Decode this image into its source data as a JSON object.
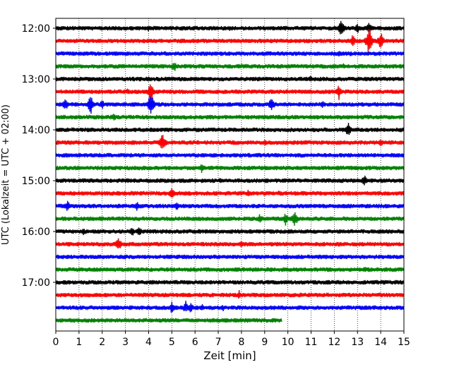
{
  "chart_data": {
    "type": "line",
    "title": "",
    "xlabel": "Zeit  [min]",
    "ylabel": "UTC (Lokalzeit = UTC + 02:00)",
    "xlim": [
      0,
      15
    ],
    "x_ticks": [
      "0",
      "1",
      "2",
      "3",
      "4",
      "5",
      "6",
      "7",
      "8",
      "9",
      "10",
      "11",
      "12",
      "13",
      "14",
      "15"
    ],
    "y_ticks": [
      "12:00",
      "13:00",
      "14:00",
      "15:00",
      "16:00",
      "17:00"
    ],
    "grid": "vertical dotted",
    "colors": [
      "#000000",
      "#ff0000",
      "#0000ff",
      "#008000"
    ],
    "series": [
      {
        "start": "12:00",
        "color": "#000000",
        "end_min": 15,
        "events": [
          [
            4.0,
            6
          ],
          [
            6.3,
            4
          ],
          [
            7.5,
            4
          ],
          [
            12.3,
            14
          ],
          [
            13.0,
            8
          ],
          [
            13.5,
            10
          ]
        ]
      },
      {
        "start": "12:15",
        "color": "#ff0000",
        "end_min": 15,
        "events": [
          [
            9.5,
            3
          ],
          [
            12.8,
            10
          ],
          [
            13.5,
            24
          ],
          [
            14.0,
            14
          ]
        ]
      },
      {
        "start": "12:30",
        "color": "#0000ff",
        "end_min": 15,
        "events": [
          [
            12.2,
            5
          ],
          [
            12.7,
            4
          ]
        ]
      },
      {
        "start": "12:45",
        "color": "#008000",
        "end_min": 15,
        "events": [
          [
            5.1,
            9
          ],
          [
            8.0,
            4
          ],
          [
            12.4,
            5
          ]
        ]
      },
      {
        "start": "13:00",
        "color": "#000000",
        "end_min": 15,
        "events": [
          [
            11.0,
            6
          ],
          [
            13.0,
            4
          ]
        ]
      },
      {
        "start": "13:15",
        "color": "#ff0000",
        "end_min": 15,
        "events": [
          [
            3.1,
            6
          ],
          [
            4.1,
            16
          ],
          [
            12.2,
            12
          ]
        ]
      },
      {
        "start": "13:30",
        "color": "#0000ff",
        "end_min": 15,
        "events": [
          [
            0.4,
            12
          ],
          [
            1.5,
            16
          ],
          [
            2.0,
            8
          ],
          [
            4.1,
            20
          ],
          [
            9.3,
            12
          ],
          [
            11.5,
            6
          ]
        ]
      },
      {
        "start": "13:45",
        "color": "#008000",
        "end_min": 15,
        "events": [
          [
            2.5,
            7
          ],
          [
            11.3,
            5
          ]
        ]
      },
      {
        "start": "14:00",
        "color": "#000000",
        "end_min": 15,
        "events": [
          [
            5.0,
            4
          ],
          [
            12.6,
            12
          ],
          [
            14.9,
            4
          ]
        ]
      },
      {
        "start": "14:15",
        "color": "#ff0000",
        "end_min": 15,
        "events": [
          [
            4.6,
            16
          ],
          [
            9.0,
            6
          ],
          [
            14.0,
            8
          ],
          [
            14.4,
            4
          ]
        ]
      },
      {
        "start": "14:30",
        "color": "#0000ff",
        "end_min": 15,
        "events": [
          [
            6.4,
            4
          ]
        ]
      },
      {
        "start": "14:45",
        "color": "#008000",
        "end_min": 15,
        "events": [
          [
            6.3,
            8
          ],
          [
            9.1,
            4
          ]
        ]
      },
      {
        "start": "15:00",
        "color": "#000000",
        "end_min": 15,
        "events": [
          [
            7.1,
            5
          ],
          [
            13.3,
            9
          ]
        ]
      },
      {
        "start": "15:15",
        "color": "#ff0000",
        "end_min": 15,
        "events": [
          [
            5.0,
            10
          ],
          [
            8.3,
            6
          ],
          [
            9.6,
            4
          ]
        ]
      },
      {
        "start": "15:30",
        "color": "#0000ff",
        "end_min": 15,
        "events": [
          [
            0.5,
            10
          ],
          [
            3.5,
            8
          ],
          [
            5.2,
            8
          ],
          [
            10.0,
            4
          ],
          [
            12.4,
            4
          ]
        ]
      },
      {
        "start": "15:45",
        "color": "#008000",
        "end_min": 15,
        "events": [
          [
            8.8,
            8
          ],
          [
            9.9,
            10
          ],
          [
            10.3,
            14
          ]
        ]
      },
      {
        "start": "16:00",
        "color": "#000000",
        "end_min": 15,
        "events": [
          [
            1.2,
            6
          ],
          [
            3.3,
            8
          ],
          [
            3.6,
            8
          ],
          [
            6.8,
            4
          ],
          [
            7.5,
            4
          ]
        ]
      },
      {
        "start": "16:15",
        "color": "#ff0000",
        "end_min": 15,
        "events": [
          [
            2.7,
            12
          ],
          [
            8.0,
            7
          ],
          [
            12.2,
            4
          ]
        ]
      },
      {
        "start": "16:30",
        "color": "#0000ff",
        "end_min": 15,
        "events": [
          [
            4.8,
            4
          ]
        ]
      },
      {
        "start": "16:45",
        "color": "#008000",
        "end_min": 15,
        "events": [
          [
            8.6,
            5
          ],
          [
            10.4,
            4
          ],
          [
            13.3,
            5
          ]
        ]
      },
      {
        "start": "17:00",
        "color": "#000000",
        "end_min": 15,
        "events": [
          [
            14.1,
            4
          ]
        ]
      },
      {
        "start": "17:15",
        "color": "#ff0000",
        "end_min": 15,
        "events": [
          [
            7.9,
            7
          ],
          [
            13.5,
            4
          ]
        ]
      },
      {
        "start": "17:30",
        "color": "#0000ff",
        "end_min": 15,
        "events": [
          [
            5.0,
            9
          ],
          [
            5.6,
            10
          ],
          [
            5.8,
            9
          ],
          [
            6.3,
            6
          ],
          [
            7.2,
            6
          ],
          [
            9.4,
            4
          ]
        ]
      },
      {
        "start": "17:45",
        "color": "#008000",
        "end_min": 9.75,
        "events": [
          [
            5.2,
            4
          ],
          [
            7.3,
            4
          ]
        ]
      }
    ]
  }
}
